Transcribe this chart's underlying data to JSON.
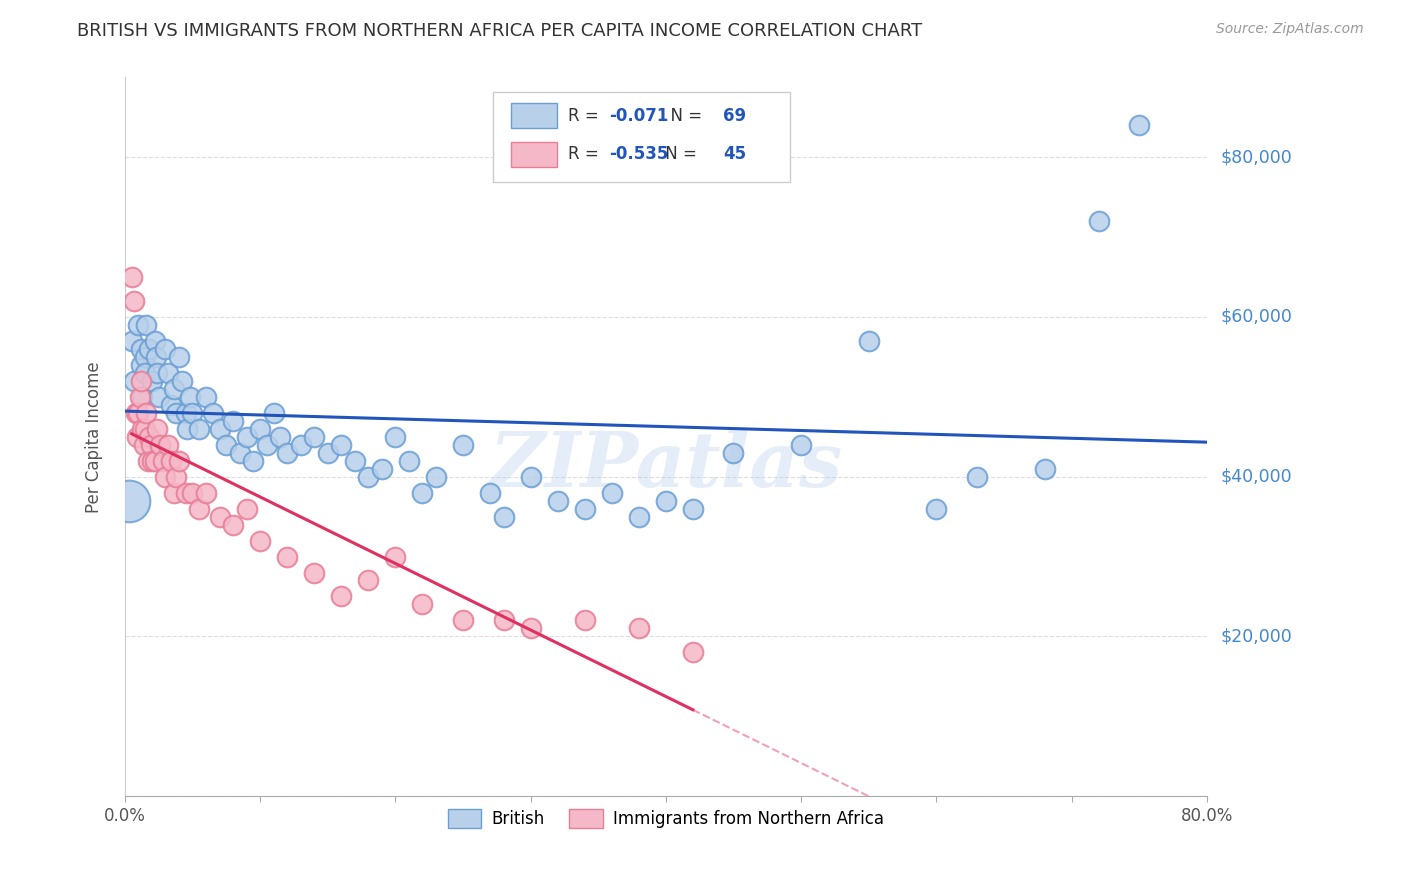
{
  "title": "BRITISH VS IMMIGRANTS FROM NORTHERN AFRICA PER CAPITA INCOME CORRELATION CHART",
  "source": "Source: ZipAtlas.com",
  "ylabel": "Per Capita Income",
  "xlim": [
    0.0,
    0.8
  ],
  "ylim": [
    0,
    90000
  ],
  "yticks": [
    0,
    20000,
    40000,
    60000,
    80000
  ],
  "xticks": [
    0.0,
    0.1,
    0.2,
    0.3,
    0.4,
    0.5,
    0.6,
    0.7,
    0.8
  ],
  "british_color": "#b8d0ea",
  "british_edge_color": "#6b9fd4",
  "northern_africa_color": "#f5b8c8",
  "northern_africa_edge_color": "#e87d96",
  "british_R": -0.071,
  "british_N": 69,
  "northern_africa_R": -0.535,
  "northern_africa_N": 45,
  "watermark": "ZIPatlas",
  "british_line_color": "#2255bb",
  "northern_africa_line_color": "#e03060",
  "background_color": "#ffffff",
  "grid_color": "#dddddd",
  "axis_label_color": "#4488cc",
  "title_color": "#333333",
  "british_scatter_x": [
    0.005,
    0.007,
    0.01,
    0.012,
    0.012,
    0.013,
    0.015,
    0.015,
    0.016,
    0.018,
    0.02,
    0.022,
    0.023,
    0.024,
    0.025,
    0.03,
    0.032,
    0.034,
    0.036,
    0.038,
    0.04,
    0.042,
    0.045,
    0.046,
    0.048,
    0.05,
    0.055,
    0.06,
    0.065,
    0.07,
    0.075,
    0.08,
    0.085,
    0.09,
    0.095,
    0.1,
    0.105,
    0.11,
    0.115,
    0.12,
    0.13,
    0.14,
    0.15,
    0.16,
    0.17,
    0.18,
    0.19,
    0.2,
    0.21,
    0.22,
    0.23,
    0.25,
    0.27,
    0.28,
    0.3,
    0.32,
    0.34,
    0.36,
    0.38,
    0.4,
    0.42,
    0.45,
    0.5,
    0.55,
    0.6,
    0.63,
    0.68,
    0.72,
    0.75
  ],
  "british_scatter_y": [
    57000,
    52000,
    59000,
    54000,
    56000,
    50000,
    55000,
    53000,
    59000,
    56000,
    52000,
    57000,
    55000,
    53000,
    50000,
    56000,
    53000,
    49000,
    51000,
    48000,
    55000,
    52000,
    48000,
    46000,
    50000,
    48000,
    46000,
    50000,
    48000,
    46000,
    44000,
    47000,
    43000,
    45000,
    42000,
    46000,
    44000,
    48000,
    45000,
    43000,
    44000,
    45000,
    43000,
    44000,
    42000,
    40000,
    41000,
    45000,
    42000,
    38000,
    40000,
    44000,
    38000,
    35000,
    40000,
    37000,
    36000,
    38000,
    35000,
    37000,
    36000,
    43000,
    44000,
    57000,
    36000,
    40000,
    41000,
    72000,
    84000
  ],
  "northern_africa_scatter_x": [
    0.005,
    0.007,
    0.008,
    0.009,
    0.01,
    0.011,
    0.012,
    0.013,
    0.014,
    0.015,
    0.016,
    0.017,
    0.018,
    0.019,
    0.02,
    0.022,
    0.024,
    0.026,
    0.028,
    0.03,
    0.032,
    0.034,
    0.036,
    0.038,
    0.04,
    0.045,
    0.05,
    0.055,
    0.06,
    0.07,
    0.08,
    0.09,
    0.1,
    0.12,
    0.14,
    0.16,
    0.18,
    0.2,
    0.22,
    0.25,
    0.28,
    0.3,
    0.34,
    0.38,
    0.42
  ],
  "northern_africa_scatter_y": [
    65000,
    62000,
    48000,
    45000,
    48000,
    50000,
    52000,
    46000,
    44000,
    46000,
    48000,
    42000,
    45000,
    44000,
    42000,
    42000,
    46000,
    44000,
    42000,
    40000,
    44000,
    42000,
    38000,
    40000,
    42000,
    38000,
    38000,
    36000,
    38000,
    35000,
    34000,
    36000,
    32000,
    30000,
    28000,
    25000,
    27000,
    30000,
    24000,
    22000,
    22000,
    21000,
    22000,
    21000,
    18000
  ]
}
